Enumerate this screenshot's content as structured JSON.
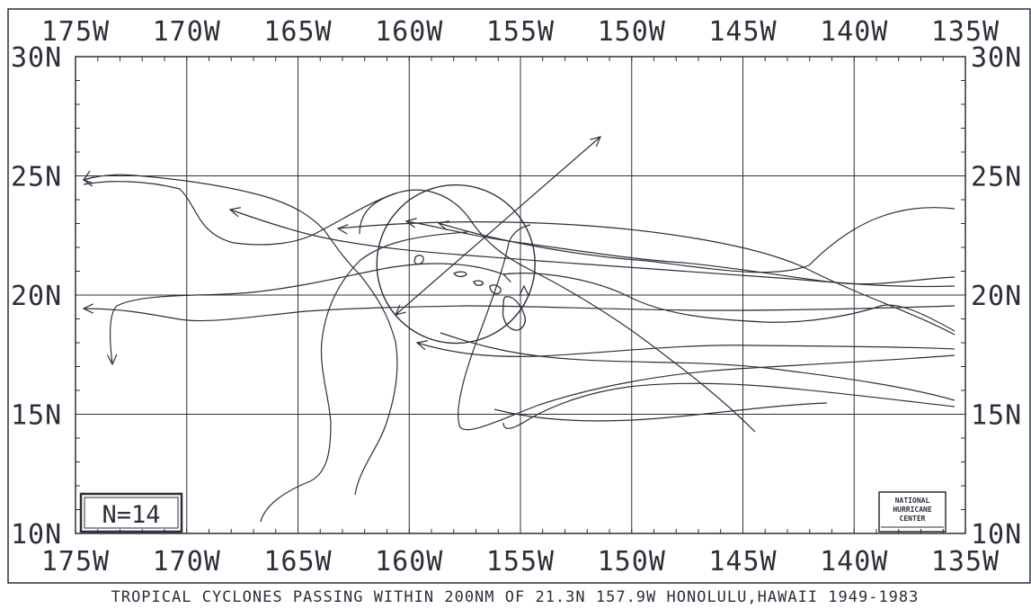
{
  "map": {
    "longitude_ticks": [
      {
        "deg": 175,
        "label": "175W"
      },
      {
        "deg": 170,
        "label": "170W"
      },
      {
        "deg": 165,
        "label": "165W"
      },
      {
        "deg": 160,
        "label": "160W"
      },
      {
        "deg": 155,
        "label": "155W"
      },
      {
        "deg": 150,
        "label": "150W"
      },
      {
        "deg": 145,
        "label": "145W"
      },
      {
        "deg": 140,
        "label": "140W"
      },
      {
        "deg": 135,
        "label": "135W"
      }
    ],
    "latitude_ticks": [
      {
        "deg": 30,
        "label": "30N"
      },
      {
        "deg": 25,
        "label": "25N"
      },
      {
        "deg": 20,
        "label": "20N"
      },
      {
        "deg": 15,
        "label": "15N"
      },
      {
        "deg": 10,
        "label": "10N"
      }
    ],
    "lon_range": [
      175,
      135
    ],
    "lat_range": [
      10,
      30
    ],
    "count_label": "N=14",
    "logo_lines": [
      "NATIONAL",
      "HURRICANE",
      "CENTER"
    ],
    "caption": "TROPICAL CYCLONES PASSING WITHIN 200NM OF 21.3N 157.9W HONOLULU,HAWAII 1949-1983",
    "circle_center": {
      "lat": 21.3,
      "lon": 157.9
    },
    "line_color": "#2b2f3a"
  }
}
